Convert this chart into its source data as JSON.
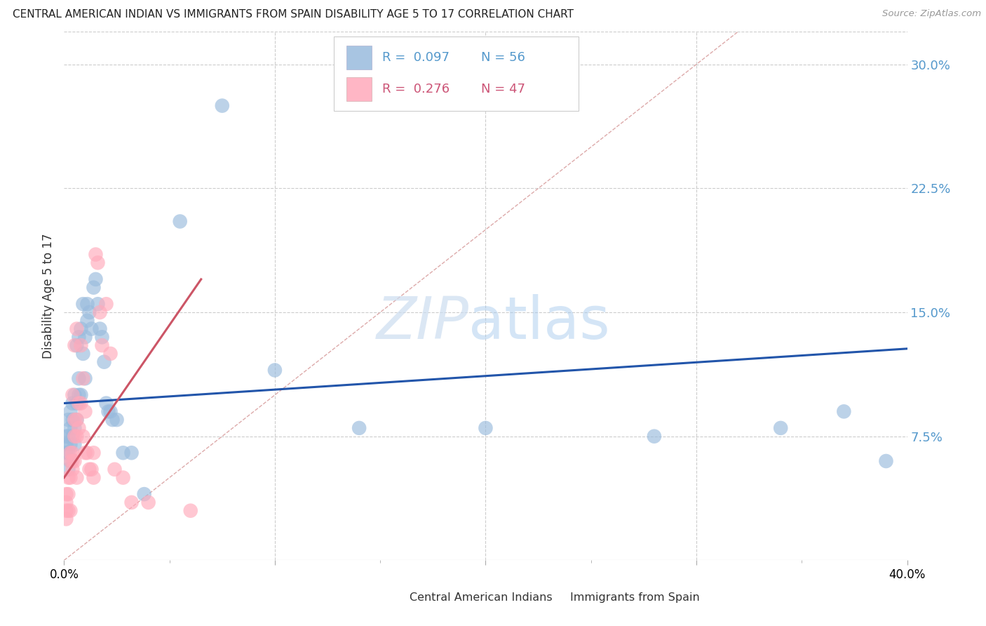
{
  "title": "CENTRAL AMERICAN INDIAN VS IMMIGRANTS FROM SPAIN DISABILITY AGE 5 TO 17 CORRELATION CHART",
  "source_text": "Source: ZipAtlas.com",
  "ylabel": "Disability Age 5 to 17",
  "xlim": [
    0.0,
    0.4
  ],
  "ylim": [
    0.0,
    0.32
  ],
  "xticks": [
    0.0,
    0.1,
    0.2,
    0.3,
    0.4
  ],
  "xticklabels": [
    "0.0%",
    "",
    "",
    "",
    "40.0%"
  ],
  "yticks_right": [
    0.075,
    0.15,
    0.225,
    0.3
  ],
  "yticklabels_right": [
    "7.5%",
    "15.0%",
    "22.5%",
    "30.0%"
  ],
  "grid_color": "#cccccc",
  "background_color": "#ffffff",
  "legend_R1": "0.097",
  "legend_N1": "56",
  "legend_R2": "0.276",
  "legend_N2": "47",
  "color_blue": "#99BBDD",
  "color_pink": "#FFAABB",
  "line_blue": "#2255AA",
  "line_pink": "#CC5566",
  "line_diag_color": "#DDAAAA",
  "watermark_zip": "ZIP",
  "watermark_atlas": "atlas",
  "blue_scatter_x": [
    0.001,
    0.001,
    0.001,
    0.002,
    0.002,
    0.002,
    0.002,
    0.003,
    0.003,
    0.003,
    0.003,
    0.004,
    0.004,
    0.004,
    0.005,
    0.005,
    0.005,
    0.006,
    0.006,
    0.006,
    0.007,
    0.007,
    0.007,
    0.008,
    0.008,
    0.009,
    0.009,
    0.01,
    0.01,
    0.011,
    0.011,
    0.012,
    0.013,
    0.014,
    0.015,
    0.016,
    0.017,
    0.018,
    0.019,
    0.02,
    0.021,
    0.022,
    0.023,
    0.025,
    0.028,
    0.032,
    0.038,
    0.055,
    0.075,
    0.1,
    0.14,
    0.2,
    0.28,
    0.34,
    0.37,
    0.39
  ],
  "blue_scatter_y": [
    0.065,
    0.07,
    0.075,
    0.055,
    0.065,
    0.075,
    0.085,
    0.06,
    0.07,
    0.08,
    0.09,
    0.075,
    0.085,
    0.095,
    0.07,
    0.08,
    0.1,
    0.085,
    0.095,
    0.13,
    0.1,
    0.11,
    0.135,
    0.1,
    0.14,
    0.125,
    0.155,
    0.11,
    0.135,
    0.145,
    0.155,
    0.15,
    0.14,
    0.165,
    0.17,
    0.155,
    0.14,
    0.135,
    0.12,
    0.095,
    0.09,
    0.09,
    0.085,
    0.085,
    0.065,
    0.065,
    0.04,
    0.205,
    0.275,
    0.115,
    0.08,
    0.08,
    0.075,
    0.08,
    0.09,
    0.06
  ],
  "pink_scatter_x": [
    0.001,
    0.001,
    0.001,
    0.001,
    0.002,
    0.002,
    0.002,
    0.003,
    0.003,
    0.003,
    0.003,
    0.004,
    0.004,
    0.004,
    0.004,
    0.005,
    0.005,
    0.005,
    0.005,
    0.006,
    0.006,
    0.006,
    0.006,
    0.007,
    0.007,
    0.008,
    0.008,
    0.009,
    0.009,
    0.01,
    0.01,
    0.011,
    0.012,
    0.013,
    0.014,
    0.014,
    0.015,
    0.016,
    0.017,
    0.018,
    0.02,
    0.022,
    0.024,
    0.028,
    0.032,
    0.04,
    0.06
  ],
  "pink_scatter_y": [
    0.025,
    0.03,
    0.035,
    0.04,
    0.03,
    0.04,
    0.05,
    0.03,
    0.05,
    0.06,
    0.065,
    0.055,
    0.06,
    0.065,
    0.1,
    0.06,
    0.075,
    0.085,
    0.13,
    0.05,
    0.075,
    0.085,
    0.14,
    0.08,
    0.095,
    0.095,
    0.13,
    0.075,
    0.11,
    0.065,
    0.09,
    0.065,
    0.055,
    0.055,
    0.05,
    0.065,
    0.185,
    0.18,
    0.15,
    0.13,
    0.155,
    0.125,
    0.055,
    0.05,
    0.035,
    0.035,
    0.03
  ],
  "blue_line_x": [
    0.0,
    0.4
  ],
  "blue_line_y": [
    0.095,
    0.128
  ],
  "pink_line_x": [
    0.0,
    0.065
  ],
  "pink_line_y": [
    0.05,
    0.17
  ],
  "diag_line_x": [
    0.0,
    0.32
  ],
  "diag_line_y": [
    0.0,
    0.32
  ]
}
